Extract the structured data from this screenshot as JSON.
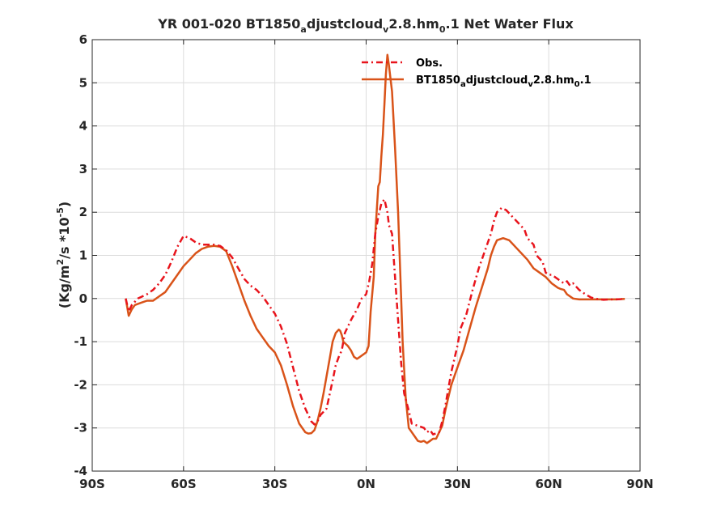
{
  "chart_data": {
    "type": "line",
    "title": {
      "pre": "YR 001-020 BT1850",
      "sub1": "a",
      "mid1": "djustcloud",
      "sub2": "v",
      "mid2": "2.8.hm",
      "sub3": "0",
      "post": ".1  Net Water Flux"
    },
    "ylabel": {
      "pre": "(Kg/m",
      "sup1": "2",
      "mid": "/s *10",
      "sup2": "-5",
      "post": ")"
    },
    "xlabel": "",
    "xlim": [
      -90,
      90
    ],
    "ylim": [
      -4,
      6
    ],
    "x_ticks": [
      {
        "value": -90,
        "label": "90S"
      },
      {
        "value": -60,
        "label": "60S"
      },
      {
        "value": -30,
        "label": "30S"
      },
      {
        "value": 0,
        "label": "0N"
      },
      {
        "value": 30,
        "label": "30N"
      },
      {
        "value": 60,
        "label": "60N"
      },
      {
        "value": 90,
        "label": "90N"
      }
    ],
    "y_ticks": [
      {
        "value": -4,
        "label": "-4"
      },
      {
        "value": -3,
        "label": "-3"
      },
      {
        "value": -2,
        "label": "-2"
      },
      {
        "value": -1,
        "label": "-1"
      },
      {
        "value": 0,
        "label": "0"
      },
      {
        "value": 1,
        "label": "1"
      },
      {
        "value": 2,
        "label": "2"
      },
      {
        "value": 3,
        "label": "3"
      },
      {
        "value": 4,
        "label": "4"
      },
      {
        "value": 5,
        "label": "5"
      },
      {
        "value": 6,
        "label": "6"
      }
    ],
    "grid": true,
    "legend_position": "top-right",
    "series": [
      {
        "name": "Obs.",
        "color": "#e8141c",
        "style": "dashed",
        "points": [
          [
            -79,
            0.0
          ],
          [
            -78,
            -0.3
          ],
          [
            -77,
            -0.15
          ],
          [
            -75,
            0.0
          ],
          [
            -72,
            0.1
          ],
          [
            -70,
            0.2
          ],
          [
            -68,
            0.35
          ],
          [
            -66,
            0.55
          ],
          [
            -64,
            0.85
          ],
          [
            -62,
            1.2
          ],
          [
            -60,
            1.45
          ],
          [
            -58,
            1.4
          ],
          [
            -56,
            1.3
          ],
          [
            -54,
            1.25
          ],
          [
            -52,
            1.25
          ],
          [
            -50,
            1.25
          ],
          [
            -48,
            1.22
          ],
          [
            -46,
            1.12
          ],
          [
            -44,
            0.95
          ],
          [
            -42,
            0.7
          ],
          [
            -40,
            0.45
          ],
          [
            -38,
            0.3
          ],
          [
            -36,
            0.2
          ],
          [
            -34,
            0.05
          ],
          [
            -32,
            -0.15
          ],
          [
            -30,
            -0.35
          ],
          [
            -28,
            -0.65
          ],
          [
            -26,
            -1.05
          ],
          [
            -24,
            -1.6
          ],
          [
            -22,
            -2.15
          ],
          [
            -20,
            -2.55
          ],
          [
            -18,
            -2.85
          ],
          [
            -17,
            -2.92
          ],
          [
            -16,
            -2.85
          ],
          [
            -15,
            -2.7
          ],
          [
            -13,
            -2.55
          ],
          [
            -11,
            -1.9
          ],
          [
            -10,
            -1.55
          ],
          [
            -9,
            -1.35
          ],
          [
            -8,
            -1.2
          ],
          [
            -7,
            -0.8
          ],
          [
            -5,
            -0.5
          ],
          [
            -3,
            -0.25
          ],
          [
            -1.5,
            0.0
          ],
          [
            0,
            0.1
          ],
          [
            1,
            0.4
          ],
          [
            2,
            0.8
          ],
          [
            3,
            1.5
          ],
          [
            4,
            1.9
          ],
          [
            5,
            2.2
          ],
          [
            6,
            2.3
          ],
          [
            7,
            2.0
          ],
          [
            7.5,
            1.7
          ],
          [
            8.5,
            1.5
          ],
          [
            9.5,
            0.5
          ],
          [
            10.5,
            -0.5
          ],
          [
            11.5,
            -1.5
          ],
          [
            12.5,
            -2.2
          ],
          [
            14,
            -2.6
          ],
          [
            15,
            -2.9
          ],
          [
            17,
            -2.95
          ],
          [
            19,
            -3.0
          ],
          [
            20,
            -3.1
          ],
          [
            21,
            -3.05
          ],
          [
            22,
            -3.15
          ],
          [
            24,
            -3.1
          ],
          [
            25,
            -2.85
          ],
          [
            26,
            -2.5
          ],
          [
            27,
            -2.1
          ],
          [
            28,
            -1.7
          ],
          [
            30,
            -1.1
          ],
          [
            31,
            -0.7
          ],
          [
            33,
            -0.35
          ],
          [
            35,
            0.2
          ],
          [
            37,
            0.7
          ],
          [
            39,
            1.1
          ],
          [
            41,
            1.5
          ],
          [
            42,
            1.8
          ],
          [
            43,
            2.0
          ],
          [
            44.5,
            2.1
          ],
          [
            46,
            2.05
          ],
          [
            48,
            1.9
          ],
          [
            50,
            1.75
          ],
          [
            52,
            1.6
          ],
          [
            53,
            1.4
          ],
          [
            55,
            1.25
          ],
          [
            56,
            1.0
          ],
          [
            58,
            0.85
          ],
          [
            59,
            0.6
          ],
          [
            60,
            0.55
          ],
          [
            61,
            0.55
          ],
          [
            62,
            0.5
          ],
          [
            63,
            0.45
          ],
          [
            64,
            0.4
          ],
          [
            65,
            0.35
          ],
          [
            66,
            0.4
          ],
          [
            67,
            0.3
          ],
          [
            68,
            0.35
          ],
          [
            70,
            0.2
          ],
          [
            72,
            0.1
          ],
          [
            74,
            0.02
          ],
          [
            76,
            -0.01
          ],
          [
            78,
            -0.03
          ],
          [
            80,
            -0.02
          ],
          [
            82,
            -0.02
          ],
          [
            84,
            -0.01
          ],
          [
            85,
            0.0
          ]
        ]
      },
      {
        "name": {
          "pre": "BT1850",
          "sub1": "a",
          "mid1": "djustcloud",
          "sub2": "v",
          "mid2": "2.8.hm",
          "sub3": "0",
          "post": ".1"
        },
        "color": "#d95319",
        "style": "solid",
        "points": [
          [
            -79,
            0.0
          ],
          [
            -78,
            -0.4
          ],
          [
            -77,
            -0.25
          ],
          [
            -76,
            -0.15
          ],
          [
            -74,
            -0.1
          ],
          [
            -72,
            -0.05
          ],
          [
            -70,
            -0.05
          ],
          [
            -68,
            0.05
          ],
          [
            -66,
            0.15
          ],
          [
            -64,
            0.35
          ],
          [
            -62,
            0.55
          ],
          [
            -60,
            0.75
          ],
          [
            -58,
            0.9
          ],
          [
            -56,
            1.05
          ],
          [
            -54,
            1.15
          ],
          [
            -52,
            1.2
          ],
          [
            -50,
            1.22
          ],
          [
            -48,
            1.2
          ],
          [
            -46,
            1.1
          ],
          [
            -44,
            0.75
          ],
          [
            -42,
            0.35
          ],
          [
            -40,
            -0.05
          ],
          [
            -38,
            -0.4
          ],
          [
            -36,
            -0.7
          ],
          [
            -34,
            -0.9
          ],
          [
            -32,
            -1.1
          ],
          [
            -30,
            -1.25
          ],
          [
            -28,
            -1.55
          ],
          [
            -26,
            -2.0
          ],
          [
            -24,
            -2.5
          ],
          [
            -22,
            -2.9
          ],
          [
            -20,
            -3.1
          ],
          [
            -19,
            -3.13
          ],
          [
            -18,
            -3.12
          ],
          [
            -17,
            -3.05
          ],
          [
            -16,
            -2.85
          ],
          [
            -15,
            -2.55
          ],
          [
            -14,
            -2.2
          ],
          [
            -13,
            -1.8
          ],
          [
            -12,
            -1.4
          ],
          [
            -11,
            -1.0
          ],
          [
            -10,
            -0.8
          ],
          [
            -9,
            -0.72
          ],
          [
            -8.5,
            -0.75
          ],
          [
            -8,
            -0.85
          ],
          [
            -7.5,
            -1.0
          ],
          [
            -6,
            -1.1
          ],
          [
            -5,
            -1.2
          ],
          [
            -4,
            -1.35
          ],
          [
            -3,
            -1.4
          ],
          [
            -2,
            -1.35
          ],
          [
            -1,
            -1.3
          ],
          [
            0,
            -1.25
          ],
          [
            0.8,
            -1.1
          ],
          [
            1.5,
            -0.3
          ],
          [
            2.5,
            0.5
          ],
          [
            3,
            1.5
          ],
          [
            4,
            2.6
          ],
          [
            4.5,
            2.7
          ],
          [
            5,
            3.3
          ],
          [
            5.5,
            3.8
          ],
          [
            6,
            4.5
          ],
          [
            6.5,
            5.2
          ],
          [
            7,
            5.65
          ],
          [
            7.5,
            5.4
          ],
          [
            8.5,
            4.8
          ],
          [
            9.5,
            3.5
          ],
          [
            10.5,
            2.0
          ],
          [
            11,
            1.0
          ],
          [
            11.5,
            0.0
          ],
          [
            12,
            -1.0
          ],
          [
            13,
            -2.3
          ],
          [
            14,
            -3.0
          ],
          [
            16,
            -3.2
          ],
          [
            17,
            -3.3
          ],
          [
            18,
            -3.32
          ],
          [
            19,
            -3.3
          ],
          [
            20,
            -3.35
          ],
          [
            21,
            -3.3
          ],
          [
            22,
            -3.25
          ],
          [
            23,
            -3.25
          ],
          [
            25,
            -2.95
          ],
          [
            26,
            -2.6
          ],
          [
            27,
            -2.3
          ],
          [
            28,
            -2.0
          ],
          [
            30,
            -1.6
          ],
          [
            32,
            -1.2
          ],
          [
            34,
            -0.7
          ],
          [
            36,
            -0.2
          ],
          [
            38,
            0.25
          ],
          [
            40,
            0.7
          ],
          [
            41,
            1.0
          ],
          [
            42,
            1.2
          ],
          [
            43,
            1.35
          ],
          [
            45,
            1.4
          ],
          [
            47,
            1.35
          ],
          [
            49,
            1.2
          ],
          [
            51,
            1.05
          ],
          [
            53,
            0.9
          ],
          [
            55,
            0.7
          ],
          [
            57,
            0.6
          ],
          [
            59,
            0.5
          ],
          [
            61,
            0.35
          ],
          [
            62,
            0.3
          ],
          [
            63,
            0.25
          ],
          [
            64,
            0.22
          ],
          [
            65,
            0.2
          ],
          [
            66,
            0.1
          ],
          [
            68,
            0.0
          ],
          [
            70,
            -0.02
          ],
          [
            72,
            -0.02
          ],
          [
            74,
            -0.02
          ],
          [
            76,
            -0.02
          ],
          [
            78,
            -0.02
          ],
          [
            80,
            -0.02
          ],
          [
            82,
            -0.02
          ],
          [
            85,
            -0.01
          ]
        ]
      }
    ]
  }
}
